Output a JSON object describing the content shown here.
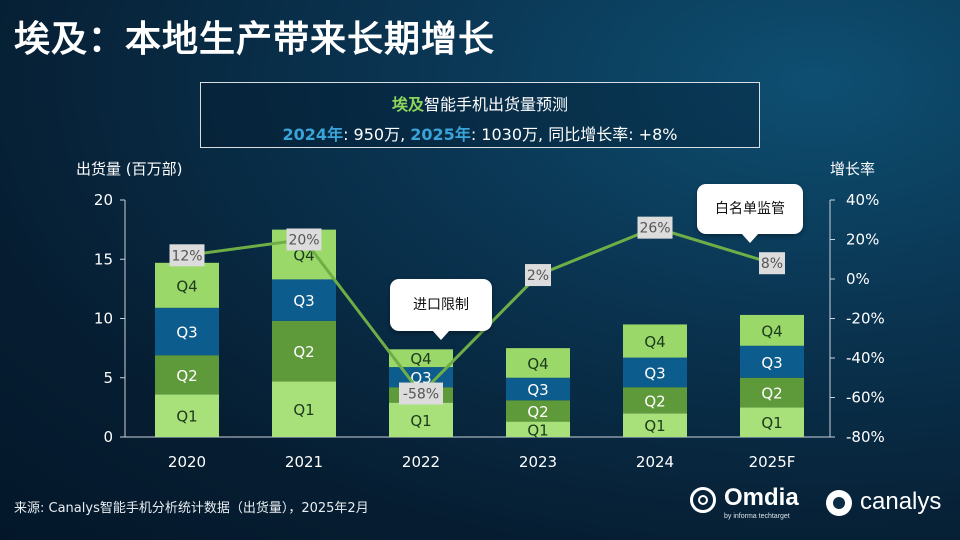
{
  "title": "埃及：本地生产带来长期增长",
  "info": {
    "heading_highlight": "埃及",
    "heading_rest": "智能手机出货量预测",
    "y2024_label": "2024年",
    "y2024_value": ": 950万, ",
    "y2025_label": "2025年",
    "y2025_value": ": 1030万, 同比增长率: +8%"
  },
  "callouts": {
    "import": "进口限制",
    "whitelist": "白名单监管"
  },
  "source": "来源: Canalys智能手机分析统计数据（出货量），2025年2月",
  "logos": {
    "omdia": "Omdia",
    "omdia_sub": "by informa techtarget",
    "canalys": "canalys"
  },
  "colors": {
    "Q1": "#a8e07a",
    "Q2": "#5f9a3a",
    "Q3": "#0d5c8e",
    "Q4": "#9ad86a",
    "growth_line": "#6fae46",
    "label_box": "#dcdcdc"
  },
  "chart_data": {
    "type": "bar",
    "stacked": true,
    "ylabel": "出货量 (百万部)",
    "y2label": "增长率",
    "categories": [
      "2020",
      "2021",
      "2022",
      "2023",
      "2024",
      "2025F"
    ],
    "ylim": [
      0,
      20
    ],
    "yticks": [
      0,
      5,
      10,
      15,
      20
    ],
    "y2lim": [
      -80,
      40
    ],
    "y2ticks": [
      "40%",
      "20%",
      "0%",
      "-20%",
      "-40%",
      "-60%",
      "-80%"
    ],
    "grid": false,
    "series": [
      {
        "name": "Q1",
        "values": [
          3.6,
          4.7,
          2.9,
          1.3,
          2.0,
          2.5
        ]
      },
      {
        "name": "Q2",
        "values": [
          3.3,
          5.1,
          1.3,
          1.8,
          2.2,
          2.5
        ]
      },
      {
        "name": "Q3",
        "values": [
          4.0,
          3.5,
          1.7,
          1.9,
          2.5,
          2.7
        ]
      },
      {
        "name": "Q4",
        "values": [
          3.8,
          4.2,
          1.5,
          2.5,
          2.8,
          2.6
        ]
      }
    ],
    "growth": {
      "values": [
        12,
        20,
        -58,
        2,
        26,
        8
      ],
      "labels": [
        "12%",
        "20%",
        "-58%",
        "2%",
        "26%",
        "8%"
      ]
    }
  }
}
